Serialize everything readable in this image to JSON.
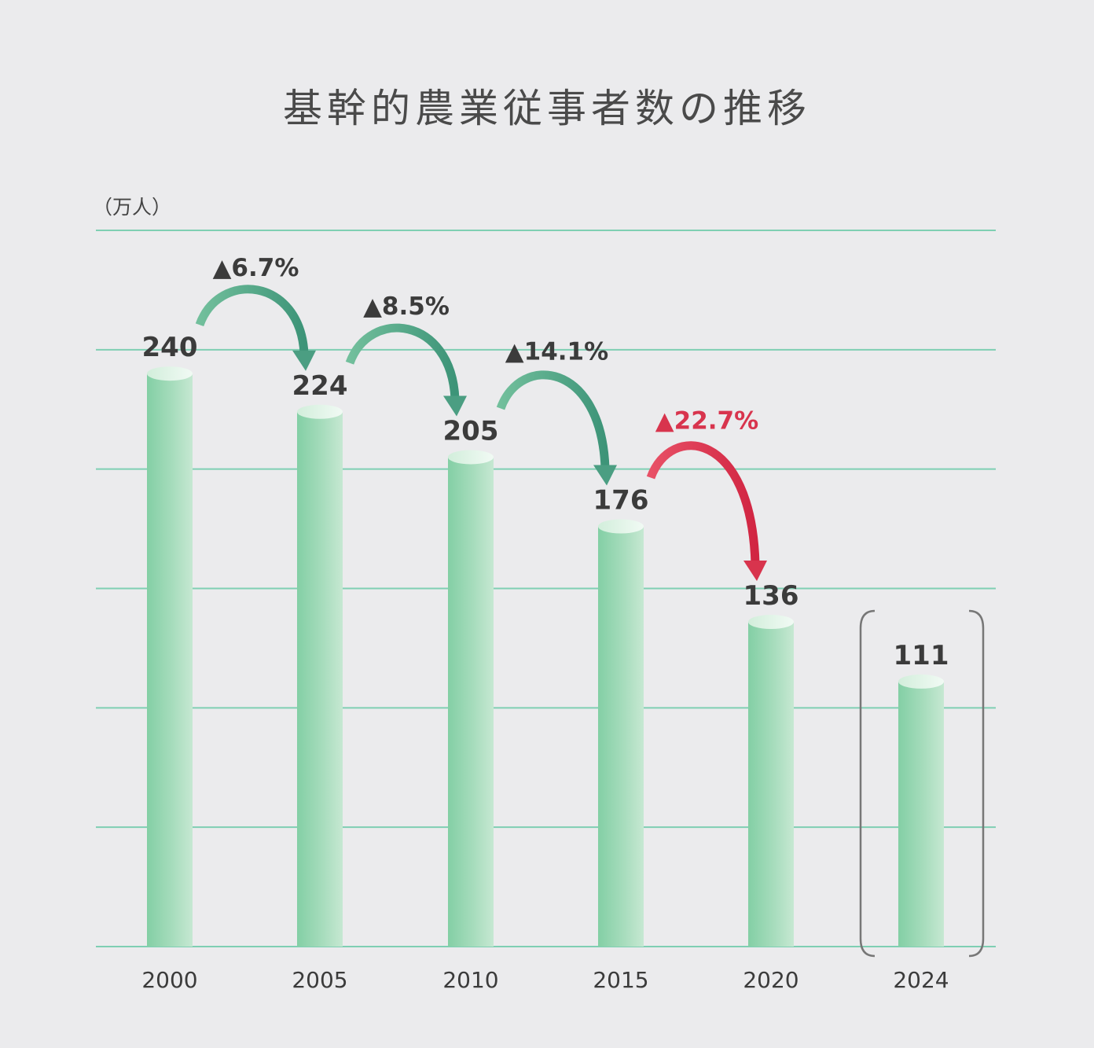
{
  "chart_data": {
    "type": "bar",
    "title": "基幹的農業従事者数の推移",
    "ylabel": "（万人）",
    "categories": [
      "2000",
      "2005",
      "2010",
      "2015",
      "2020",
      "2024"
    ],
    "values": [
      240,
      224,
      205,
      176,
      136,
      111
    ],
    "ylim": [
      0,
      300
    ],
    "grid": true,
    "bar_color": "#8ed4ac",
    "highlighted_category": "2024",
    "annotations": [
      {
        "from": "2000",
        "to": "2005",
        "label": "▲6.7%",
        "color": "#4b9e82"
      },
      {
        "from": "2005",
        "to": "2010",
        "label": "▲8.5%",
        "color": "#4b9e82"
      },
      {
        "from": "2010",
        "to": "2015",
        "label": "▲14.1%",
        "color": "#4b9e82"
      },
      {
        "from": "2015",
        "to": "2020",
        "label": "▲22.7%",
        "color": "#d8344d"
      }
    ]
  }
}
